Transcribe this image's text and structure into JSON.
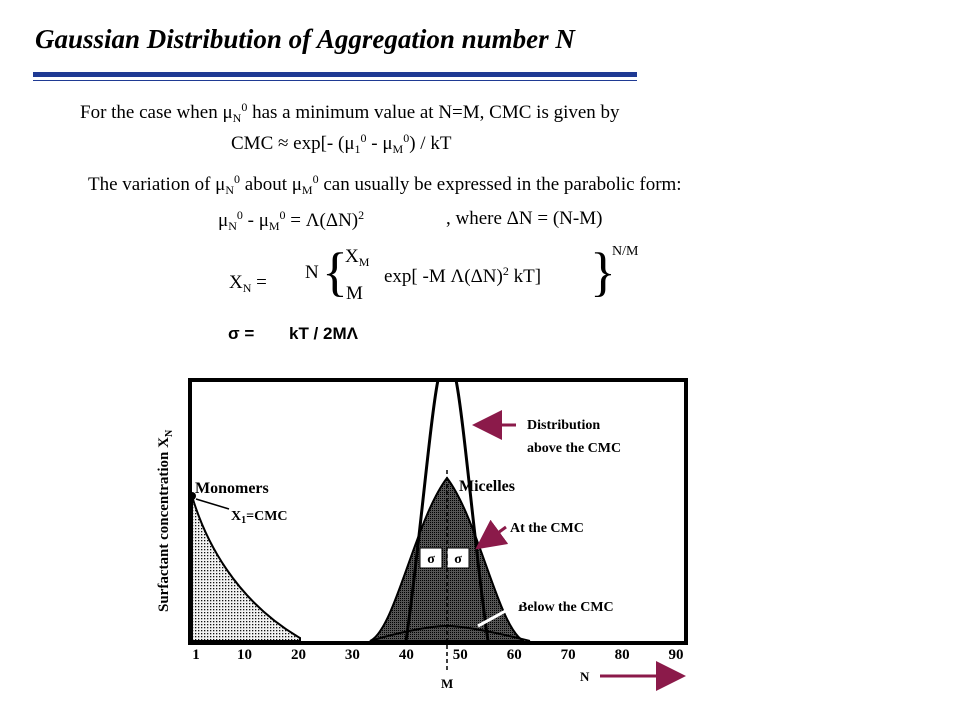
{
  "title": "Gaussian Distribution of Aggregation number N",
  "line1": {
    "prefix": "For the case when ",
    "mu_sub": "N",
    "mu_sup": "0",
    "suffix": " has a minimum value at N=M, CMC is given by"
  },
  "cmc_eq": {
    "lhs": "CMC ≈ exp[- (",
    "sub1": "1",
    "sup1": "0",
    "mid": " - ",
    "sub2": "M",
    "sup2": "0",
    "rhs": ") / kT"
  },
  "line2": {
    "prefix": "The variation of ",
    "sub1": "N",
    "sup1": "0",
    "mid": " about ",
    "sub2": "M",
    "sup2": "0",
    "suffix": " can usually be expressed in the parabolic form:"
  },
  "parabolic_eq": {
    "sub1": "N",
    "sup1": "0",
    "minus": " - ",
    "sub2": "M",
    "sup2": "0",
    "rhs": " = Λ(ΔN)",
    "sq": "2",
    "where": ", where ΔN = (N-M)"
  },
  "xn_eq": {
    "lhs": "X",
    "lhs_sub": "N",
    "equals": "=",
    "n": "N",
    "frac_top": "X",
    "frac_top_sub": "M",
    "frac_bot": "M",
    "exp_part": "exp[ -M Λ(ΔN)",
    "exp_sq": "2",
    "exp_end": " kT]",
    "power": "N/M"
  },
  "sigma_eq": {
    "lhs": "σ =",
    "rhs": "kT / 2MΛ"
  },
  "figure": {
    "ylabel_main": "Surfactant concentration X",
    "ylabel_sub": "N",
    "x_ticks": [
      "1",
      "10",
      "20",
      "30",
      "40",
      "50",
      "60",
      "70",
      "80",
      "90"
    ],
    "x_tick_values": [
      1,
      10,
      20,
      30,
      40,
      50,
      60,
      70,
      80,
      90
    ],
    "m_label": "M",
    "n_label": "N",
    "monomers": "Monomers",
    "x1_label": "X",
    "x1_sub": "1",
    "x1_rest": "=CMC",
    "micelles": "Micelles",
    "dist_line1": "Distribution",
    "dist_line2": "above the CMC",
    "at_cmc": "At the CMC",
    "below_cmc": "Below the CMC",
    "sigma_symbol": "σ",
    "arrow_color": "#8b1a4a"
  }
}
